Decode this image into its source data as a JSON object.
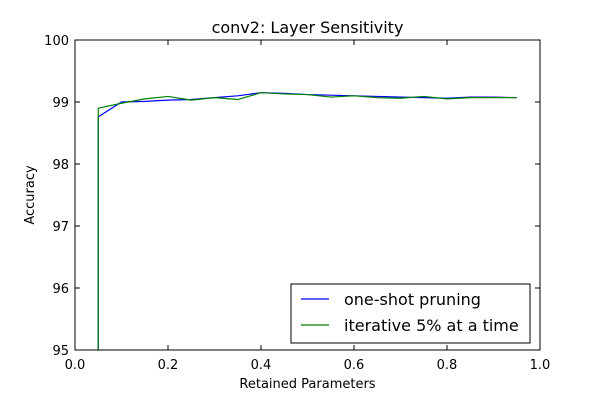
{
  "chart_data": {
    "type": "line",
    "title": "conv2: Layer Sensitivity",
    "xlabel": "Retained Parameters",
    "ylabel": "Accuracy",
    "xlim": [
      0.0,
      1.0
    ],
    "ylim": [
      95,
      100
    ],
    "xticks": [
      0.0,
      0.2,
      0.4,
      0.6,
      0.8,
      1.0
    ],
    "xtick_labels": [
      "0.0",
      "0.2",
      "0.4",
      "0.6",
      "0.8",
      "1.0"
    ],
    "yticks": [
      95,
      96,
      97,
      98,
      99,
      100
    ],
    "ytick_labels": [
      "95",
      "96",
      "97",
      "98",
      "99",
      "100"
    ],
    "grid": false,
    "legend_position": "bottom-right",
    "series": [
      {
        "name": "one-shot pruning",
        "color": "#0000ff",
        "x": [
          0.05,
          0.05,
          0.1,
          0.15,
          0.2,
          0.25,
          0.3,
          0.35,
          0.4,
          0.45,
          0.5,
          0.55,
          0.6,
          0.65,
          0.7,
          0.75,
          0.8,
          0.85,
          0.9,
          0.95
        ],
        "y": [
          94.2,
          98.76,
          99.0,
          99.01,
          99.03,
          99.04,
          99.07,
          99.1,
          99.15,
          99.14,
          99.12,
          99.11,
          99.1,
          99.09,
          99.08,
          99.07,
          99.06,
          99.08,
          99.08,
          99.07
        ]
      },
      {
        "name": "iterative 5% at a time",
        "color": "#008000",
        "x": [
          0.05,
          0.05,
          0.1,
          0.15,
          0.2,
          0.25,
          0.3,
          0.35,
          0.4,
          0.45,
          0.5,
          0.55,
          0.6,
          0.65,
          0.7,
          0.75,
          0.8,
          0.85,
          0.9,
          0.95
        ],
        "y": [
          94.2,
          98.9,
          98.98,
          99.05,
          99.09,
          99.03,
          99.07,
          99.04,
          99.15,
          99.13,
          99.12,
          99.08,
          99.1,
          99.07,
          99.06,
          99.09,
          99.05,
          99.07,
          99.07,
          99.07
        ]
      }
    ]
  }
}
